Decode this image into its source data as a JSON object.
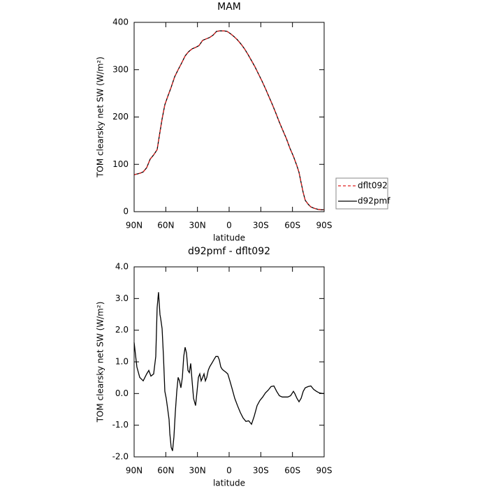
{
  "chart_data": [
    {
      "type": "line",
      "title": "MAM",
      "xlabel": "latitude",
      "ylabel": "TOM clearsky net SW (W/m²)",
      "x": [
        90,
        84.7,
        81.4,
        78.1,
        74.8,
        71.5,
        68.2,
        66.2,
        63.5,
        60.9,
        58.2,
        54.9,
        51.6,
        48.3,
        45.0,
        41.7,
        38.4,
        35.1,
        31.8,
        28.5,
        25.1,
        21.8,
        18.5,
        15.2,
        11.9,
        8.6,
        5.3,
        2.0,
        -1.3,
        -4.6,
        -7.9,
        -11.3,
        -14.6,
        -17.9,
        -21.2,
        -24.5,
        -27.8,
        -31.1,
        -34.4,
        -37.7,
        -41.0,
        -44.3,
        -47.6,
        -51.0,
        -54.3,
        -57.6,
        -60.9,
        -64.2,
        -66.2,
        -68.2,
        -70.2,
        -72.1,
        -74.8,
        -77.4,
        -80.7,
        -84.0,
        -87.4,
        -90
      ],
      "series": [
        {
          "name": "dflt092",
          "color": "#e02020",
          "style": "dashed",
          "values": [
            78,
            81,
            84,
            93,
            111,
            120,
            131,
            159,
            196,
            226,
            243,
            263,
            285,
            300,
            314,
            329,
            338,
            344,
            347,
            351,
            362,
            365,
            368,
            373,
            381,
            382,
            382,
            381,
            376,
            370,
            363,
            354,
            344,
            332,
            319,
            306,
            291,
            276,
            260,
            243,
            226,
            208,
            189,
            171,
            154,
            134,
            117,
            97,
            83,
            61,
            40,
            24,
            16,
            10,
            7,
            5,
            4,
            4
          ]
        },
        {
          "name": "d92pmf",
          "color": "#000000",
          "style": "solid",
          "values": [
            78,
            81,
            84,
            93,
            111,
            120,
            131,
            159,
            196,
            226,
            243,
            263,
            285,
            300,
            314,
            329,
            338,
            344,
            347,
            351,
            362,
            365,
            368,
            373,
            381,
            382,
            382,
            381,
            376,
            370,
            363,
            354,
            344,
            332,
            319,
            306,
            291,
            276,
            260,
            243,
            226,
            208,
            189,
            171,
            154,
            134,
            117,
            97,
            83,
            61,
            40,
            24,
            16,
            10,
            7,
            5,
            4,
            4
          ]
        }
      ],
      "xlim": [
        90,
        -90
      ],
      "xticks": [
        {
          "value": 90,
          "label": "90N"
        },
        {
          "value": 60,
          "label": "60N"
        },
        {
          "value": 30,
          "label": "30N"
        },
        0,
        {
          "value": -30,
          "label": "30S"
        },
        {
          "value": -60,
          "label": "60S"
        },
        {
          "value": -90,
          "label": "90S"
        }
      ],
      "ylim": [
        0,
        400
      ],
      "yticks": [
        0,
        100,
        200,
        300,
        400
      ],
      "legend": "right",
      "grid": false
    },
    {
      "type": "line",
      "title": "d92pmf - dflt092",
      "xlabel": "latitude",
      "ylabel": "TOM clearsky net SW (W/m²)",
      "color": "#000000",
      "x": [
        90,
        87.4,
        84.7,
        81.4,
        78.1,
        76.1,
        74.1,
        71.5,
        69.5,
        68.2,
        66.9,
        65.5,
        64.9,
        63.5,
        62.2,
        60.9,
        59.6,
        58.2,
        56.9,
        56.2,
        54.9,
        53.6,
        52.3,
        51.0,
        49.6,
        48.3,
        47.0,
        45.7,
        44.3,
        43.0,
        41.7,
        40.4,
        39.0,
        37.7,
        36.4,
        35.1,
        33.7,
        31.8,
        30.4,
        29.1,
        27.8,
        26.5,
        25.1,
        23.8,
        22.5,
        21.2,
        19.8,
        18.5,
        16.5,
        14.6,
        12.6,
        10.6,
        9.3,
        7.9,
        6.6,
        5.3,
        3.3,
        1.3,
        -0.7,
        -2.6,
        -5.3,
        -7.9,
        -10.6,
        -13.2,
        -15.9,
        -18.5,
        -21.2,
        -23.8,
        -26.5,
        -29.1,
        -31.8,
        -34.4,
        -37.1,
        -39.7,
        -42.4,
        -45.0,
        -47.6,
        -50.3,
        -52.9,
        -55.6,
        -58.2,
        -60.9,
        -62.2,
        -64.2,
        -66.2,
        -68.2,
        -70.2,
        -72.1,
        -74.8,
        -77.4,
        -80.1,
        -82.7,
        -85.4,
        -88.7,
        -90
      ],
      "values": [
        1.61,
        0.84,
        0.51,
        0.4,
        0.62,
        0.73,
        0.55,
        0.62,
        1.17,
        2.71,
        3.2,
        2.49,
        2.38,
        2.05,
        1.17,
        0.07,
        -0.15,
        -0.49,
        -0.82,
        -1.26,
        -1.7,
        -1.81,
        -1.37,
        -0.6,
        0.07,
        0.51,
        0.4,
        0.18,
        0.51,
        1.17,
        1.46,
        1.28,
        0.73,
        0.66,
        0.95,
        0.4,
        -0.15,
        -0.38,
        0.07,
        0.51,
        0.62,
        0.4,
        0.51,
        0.62,
        0.4,
        0.51,
        0.73,
        0.84,
        0.95,
        1.06,
        1.17,
        1.17,
        1.06,
        0.84,
        0.77,
        0.73,
        0.68,
        0.62,
        0.4,
        0.18,
        -0.15,
        -0.38,
        -0.6,
        -0.77,
        -0.88,
        -0.86,
        -0.97,
        -0.71,
        -0.38,
        -0.22,
        -0.11,
        0.02,
        0.11,
        0.22,
        0.24,
        0.07,
        -0.07,
        -0.11,
        -0.11,
        -0.11,
        -0.07,
        0.07,
        0,
        -0.15,
        -0.26,
        -0.15,
        0.07,
        0.18,
        0.22,
        0.24,
        0.13,
        0.07,
        0.02,
        0,
        0
      ],
      "xlim": [
        90,
        -90
      ],
      "xticks": [
        {
          "value": 90,
          "label": "90N"
        },
        {
          "value": 60,
          "label": "60N"
        },
        {
          "value": 30,
          "label": "30N"
        },
        0,
        {
          "value": -30,
          "label": "30S"
        },
        {
          "value": -60,
          "label": "60S"
        },
        {
          "value": -90,
          "label": "90S"
        }
      ],
      "ylim": [
        -2,
        4
      ],
      "yticks": [
        {
          "value": -2,
          "label": "-2.0"
        },
        {
          "value": -1,
          "label": "-1.0"
        },
        {
          "value": 0,
          "label": "0.0"
        },
        {
          "value": 1,
          "label": "1.0"
        },
        {
          "value": 2,
          "label": "2.0"
        },
        {
          "value": 3,
          "label": "3.0"
        },
        {
          "value": 4,
          "label": "4.0"
        }
      ],
      "grid": false
    }
  ]
}
